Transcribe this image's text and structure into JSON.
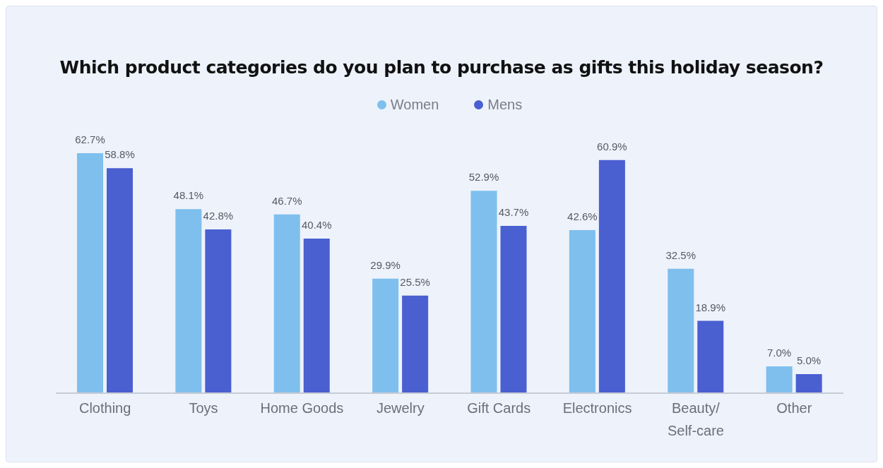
{
  "chart_data": {
    "type": "bar",
    "title": "Which product categories do you plan to purchase as gifts this holiday season?",
    "categories": [
      "Clothing",
      "Toys",
      "Home Goods",
      "Jewelry",
      "Gift Cards",
      "Electronics",
      "Beauty/Self-care",
      "Other"
    ],
    "series": [
      {
        "name": "Women",
        "color": "#7fbfee",
        "values": [
          62.7,
          48.1,
          46.7,
          29.9,
          52.9,
          42.6,
          32.5,
          7.0
        ],
        "value_labels": [
          "62.7%",
          "48.1%",
          "46.7%",
          "29.9%",
          "52.9%",
          "42.6%",
          "32.5%",
          "7.0%"
        ]
      },
      {
        "name": "Mens",
        "color": "#4a5fd0",
        "values": [
          58.8,
          42.8,
          40.4,
          25.5,
          43.7,
          60.9,
          18.9,
          5.0
        ],
        "value_labels": [
          "58.8%",
          "42.8%",
          "40.4%",
          "25.5%",
          "43.7%",
          "60.9%",
          "18.9%",
          "5.0%"
        ]
      }
    ],
    "legend": "top",
    "grid": false
  }
}
